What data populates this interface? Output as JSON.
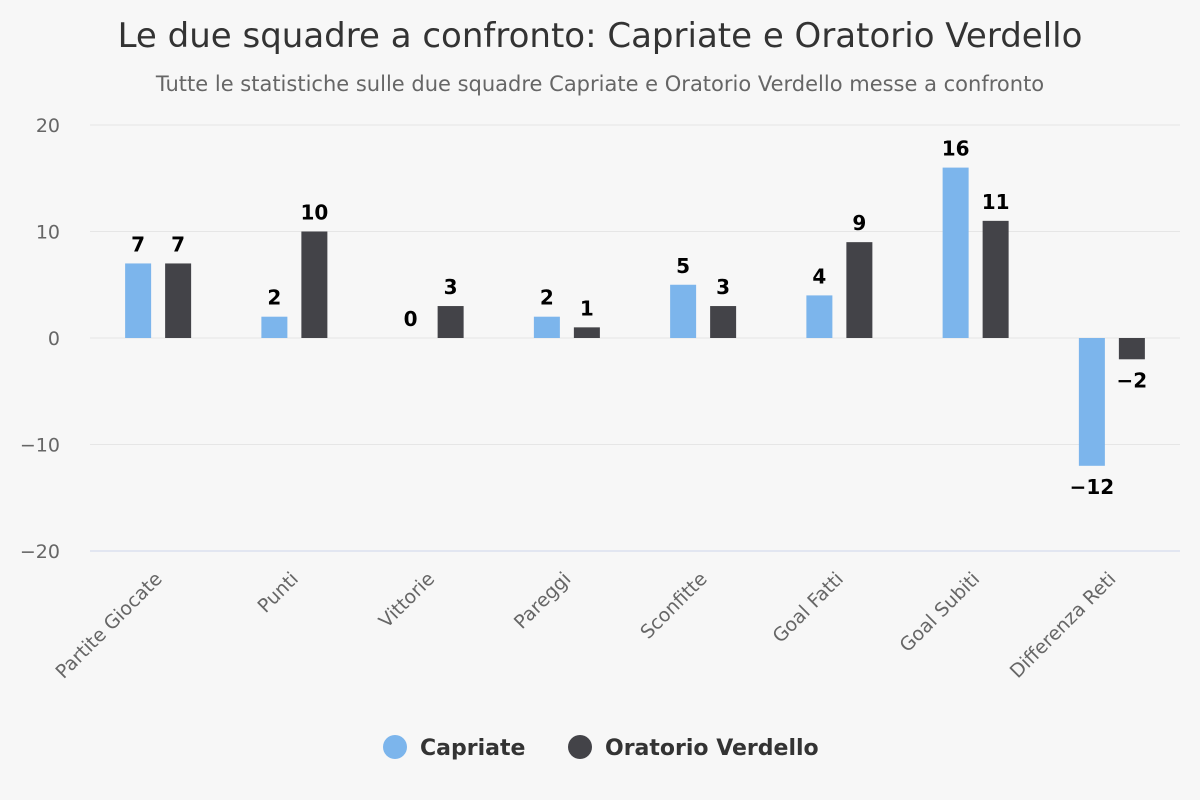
{
  "chart_data": {
    "type": "bar",
    "title": "Le due squadre a confronto: Capriate e Oratorio Verdello",
    "subtitle": "Tutte le statistiche sulle due squadre Capriate e Oratorio Verdello messe a confronto",
    "categories": [
      "Partite Giocate",
      "Punti",
      "Vittorie",
      "Pareggi",
      "Sconfitte",
      "Goal Fatti",
      "Goal Subiti",
      "Differenza Reti"
    ],
    "series": [
      {
        "name": "Capriate",
        "color": "#7cb5ec",
        "values": [
          7,
          2,
          0,
          2,
          5,
          4,
          16,
          -12
        ]
      },
      {
        "name": "Oratorio Verdello",
        "color": "#434348",
        "values": [
          7,
          10,
          3,
          1,
          3,
          9,
          11,
          -2
        ]
      }
    ],
    "ylim": [
      -20,
      20
    ],
    "yticks": [
      20,
      10,
      0,
      -10,
      -20
    ],
    "ytick_labels": [
      "20",
      "10",
      "0",
      "−10",
      "−20"
    ],
    "grid": true,
    "legend_position": "bottom-center",
    "xlabel": "",
    "ylabel": ""
  }
}
